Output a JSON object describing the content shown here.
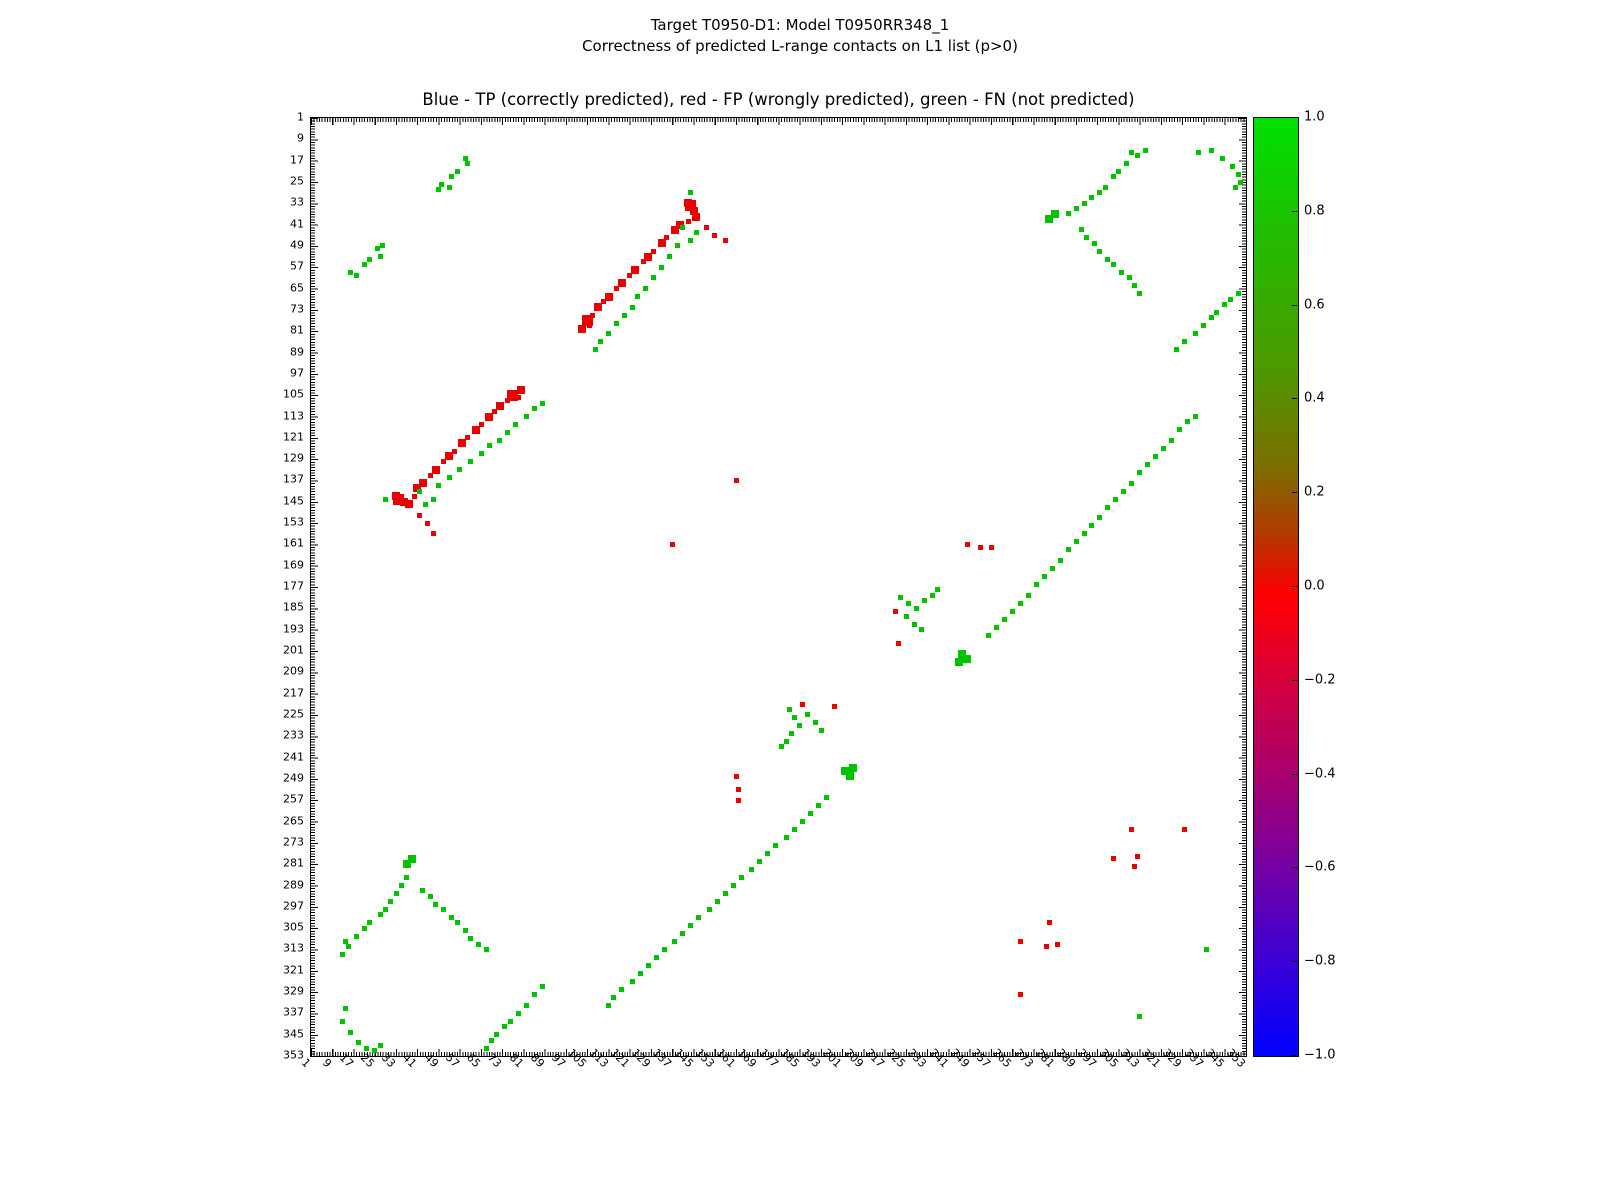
{
  "chart_data": {
    "type": "scatter",
    "suptitle1": "Target T0950-D1: Model T0950RR348_1",
    "suptitle2": "Correctness of predicted L-range contacts on L1 list (p>0)",
    "title": "Blue - TP (correctly predicted), red - FP (wrongly predicted), green - FN (not predicted)",
    "axis_min": 1,
    "axis_max": 353,
    "tick_step": 8,
    "x_tick_rotation": 45,
    "grid": false,
    "symmetric": true,
    "tick_labels": [
      "1",
      "9",
      "17",
      "25",
      "33",
      "41",
      "49",
      "57",
      "65",
      "73",
      "81",
      "89",
      "97",
      "105",
      "113",
      "121",
      "129",
      "137",
      "145",
      "153",
      "161",
      "169",
      "177",
      "185",
      "193",
      "201",
      "209",
      "217",
      "225",
      "233",
      "241",
      "249",
      "257",
      "265",
      "273",
      "281",
      "289",
      "297",
      "305",
      "313",
      "321",
      "329",
      "337",
      "345",
      "353"
    ],
    "series": [
      {
        "name": "TP (correctly predicted)",
        "color": "#0000ff",
        "points": []
      },
      {
        "name": "FP (wrongly predicted)",
        "color": "#e90000",
        "points": [
          [
            144,
            34,
            3
          ],
          [
            143,
            33,
            2
          ],
          [
            145,
            36,
            2
          ],
          [
            146,
            38,
            2
          ],
          [
            143,
            40
          ],
          [
            140,
            41,
            2
          ],
          [
            138,
            43,
            2
          ],
          [
            135,
            46
          ],
          [
            133,
            48,
            2
          ],
          [
            130,
            51
          ],
          [
            128,
            53,
            2
          ],
          [
            126,
            55
          ],
          [
            123,
            58,
            2
          ],
          [
            121,
            60
          ],
          [
            118,
            63,
            2
          ],
          [
            116,
            65
          ],
          [
            113,
            68,
            2
          ],
          [
            111,
            70
          ],
          [
            109,
            72,
            2
          ],
          [
            107,
            75
          ],
          [
            105,
            77,
            3
          ],
          [
            106,
            79
          ],
          [
            103,
            80,
            2
          ],
          [
            157,
            47
          ],
          [
            153,
            45
          ],
          [
            150,
            42
          ],
          [
            161,
            137
          ],
          [
            221,
            186
          ],
          [
            222,
            198
          ],
          [
            248,
            161
          ],
          [
            253,
            162
          ],
          [
            257,
            162
          ],
          [
            310,
            268
          ],
          [
            330,
            268
          ],
          [
            312,
            278
          ],
          [
            311,
            282
          ],
          [
            303,
            279
          ]
        ]
      },
      {
        "name": "FN (not predicted)",
        "color": "#00c300",
        "points": [
          [
            59,
            16
          ],
          [
            60,
            18
          ],
          [
            56,
            21
          ],
          [
            54,
            23
          ],
          [
            50,
            26
          ],
          [
            53,
            27
          ],
          [
            49,
            28
          ],
          [
            144,
            29
          ],
          [
            146,
            44
          ],
          [
            144,
            47
          ],
          [
            141,
            42
          ],
          [
            139,
            49
          ],
          [
            136,
            53
          ],
          [
            133,
            57
          ],
          [
            130,
            61
          ],
          [
            127,
            65
          ],
          [
            124,
            68
          ],
          [
            122,
            72
          ],
          [
            119,
            75
          ],
          [
            116,
            78
          ],
          [
            113,
            82
          ],
          [
            110,
            85
          ],
          [
            108,
            88
          ],
          [
            335,
            14
          ],
          [
            340,
            13
          ],
          [
            344,
            16
          ],
          [
            348,
            19
          ],
          [
            350,
            22
          ],
          [
            351,
            25
          ],
          [
            349,
            27
          ],
          [
            315,
            13
          ],
          [
            312,
            15
          ],
          [
            310,
            14
          ],
          [
            308,
            18
          ],
          [
            305,
            21
          ],
          [
            303,
            23
          ],
          [
            300,
            27
          ],
          [
            298,
            29
          ],
          [
            295,
            31
          ],
          [
            292,
            33
          ],
          [
            289,
            35
          ],
          [
            286,
            37
          ],
          [
            281,
            37,
            2
          ],
          [
            279,
            39,
            2
          ],
          [
            291,
            43
          ],
          [
            293,
            46
          ],
          [
            296,
            48
          ],
          [
            298,
            51
          ],
          [
            301,
            54
          ],
          [
            303,
            56
          ],
          [
            306,
            59
          ],
          [
            309,
            61
          ],
          [
            311,
            64
          ],
          [
            313,
            67
          ],
          [
            350,
            67
          ],
          [
            347,
            69
          ],
          [
            345,
            71
          ],
          [
            342,
            74
          ],
          [
            340,
            76
          ],
          [
            337,
            79
          ],
          [
            334,
            82
          ],
          [
            330,
            85
          ],
          [
            327,
            88
          ],
          [
            334,
            113
          ],
          [
            331,
            115
          ],
          [
            328,
            118
          ],
          [
            325,
            122
          ],
          [
            322,
            125
          ],
          [
            319,
            128
          ],
          [
            316,
            131
          ],
          [
            313,
            134
          ],
          [
            310,
            138
          ],
          [
            307,
            141
          ],
          [
            304,
            144
          ],
          [
            301,
            147
          ],
          [
            298,
            151
          ],
          [
            295,
            154
          ],
          [
            292,
            157
          ],
          [
            289,
            160
          ],
          [
            286,
            163
          ],
          [
            283,
            167
          ],
          [
            280,
            170
          ],
          [
            277,
            173
          ],
          [
            274,
            176
          ],
          [
            271,
            180
          ],
          [
            268,
            183
          ],
          [
            265,
            186
          ],
          [
            262,
            189
          ],
          [
            259,
            192
          ],
          [
            256,
            195
          ],
          [
            246,
            202,
            2
          ],
          [
            245,
            205,
            2
          ],
          [
            248,
            204,
            2
          ],
          [
            223,
            181
          ],
          [
            226,
            183
          ],
          [
            229,
            185
          ],
          [
            232,
            182
          ],
          [
            235,
            180
          ],
          [
            237,
            178
          ],
          [
            225,
            188
          ],
          [
            228,
            191
          ],
          [
            231,
            193
          ],
          [
            338,
            313
          ]
        ]
      }
    ],
    "colorbar": {
      "min": -1.0,
      "max": 1.0,
      "tick_labels": [
        "1.0",
        "0.8",
        "0.6",
        "0.4",
        "0.2",
        "0.0",
        "−0.2",
        "−0.4",
        "−0.6",
        "−0.8",
        "−1.0"
      ],
      "gradient": [
        [
          "#00e100",
          0
        ],
        [
          "#23bb00",
          0.13
        ],
        [
          "#4d9800",
          0.27
        ],
        [
          "#7b6f00",
          0.37
        ],
        [
          "#b03c00",
          0.44
        ],
        [
          "#e90e00",
          0.49
        ],
        [
          "#ff0000",
          0.51
        ],
        [
          "#d6003c",
          0.6
        ],
        [
          "#a8006e",
          0.7
        ],
        [
          "#7500a5",
          0.8
        ],
        [
          "#3b00d6",
          0.9
        ],
        [
          "#0000ff",
          1
        ]
      ]
    }
  }
}
